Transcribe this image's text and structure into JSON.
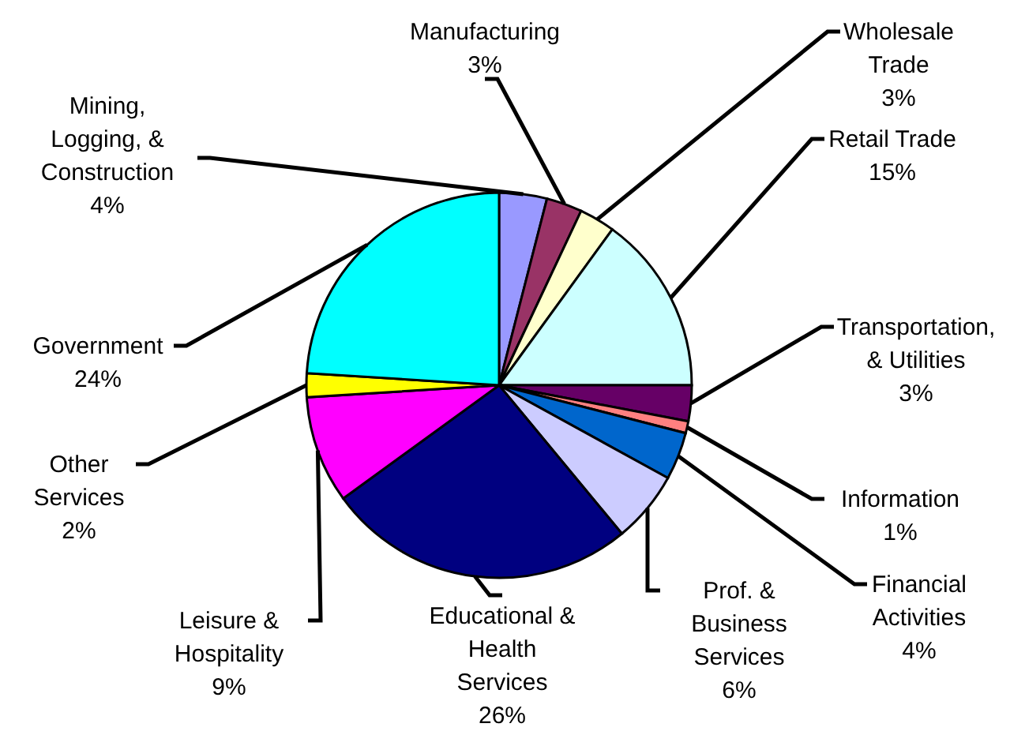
{
  "chart_data": {
    "type": "pie",
    "categories": [
      "Mining, Logging, & Construction",
      "Manufacturing",
      "Wholesale Trade",
      "Retail Trade",
      "Transportation, & Utilities",
      "Information",
      "Financial Activities",
      "Prof. & Business Services",
      "Educational & Health Services",
      "Leisure & Hospitality",
      "Other Services",
      "Government"
    ],
    "values": [
      4,
      3,
      3,
      15,
      3,
      1,
      4,
      6,
      26,
      9,
      2,
      24
    ],
    "value_labels": [
      "4%",
      "3%",
      "3%",
      "15%",
      "3%",
      "1%",
      "4%",
      "6%",
      "26%",
      "9%",
      "2%",
      "24%"
    ],
    "colors": [
      "#9999ff",
      "#993366",
      "#ffffcc",
      "#ccffff",
      "#660066",
      "#ff8080",
      "#0066cc",
      "#ccccff",
      "#000080",
      "#ff00ff",
      "#ffff00",
      "#00ffff"
    ]
  }
}
